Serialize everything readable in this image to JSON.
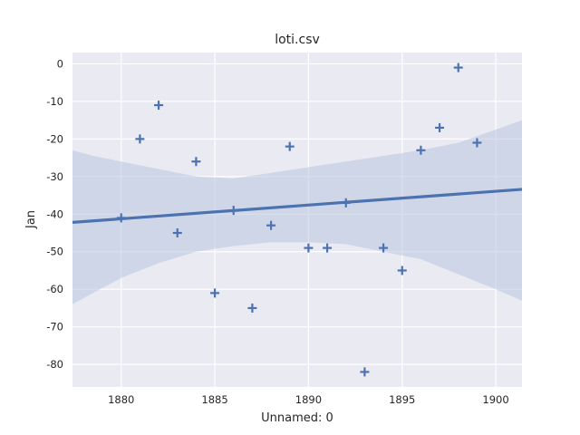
{
  "chart_data": {
    "type": "scatter",
    "title": "loti.csv",
    "xlabel": "Unnamed: 0",
    "ylabel": "Jan",
    "xlim": [
      1877.4,
      1901.4
    ],
    "ylim": [
      -86,
      3
    ],
    "xticks": [
      1880,
      1885,
      1890,
      1895,
      1900
    ],
    "yticks": [
      0,
      -10,
      -20,
      -30,
      -40,
      -50,
      -60,
      -70,
      -80
    ],
    "grid": true,
    "marker": "+",
    "colors": {
      "points": "#4c72b0",
      "regression_line": "#4c72b0",
      "confidence_band": "#b8c5e0",
      "plot_background": "#eaeaf2",
      "grid": "#ffffff"
    },
    "series": [
      {
        "x": [
          1880,
          1881,
          1882,
          1883,
          1884,
          1885,
          1886,
          1887,
          1888,
          1889,
          1890,
          1891,
          1892,
          1893,
          1894,
          1895,
          1896,
          1897,
          1898,
          1899
        ],
        "y": [
          -41,
          -20,
          -11,
          -45,
          -26,
          -61,
          -39,
          -65,
          -43,
          -22,
          -49,
          -49,
          -37,
          -82,
          -49,
          -55,
          -23,
          -17,
          -1,
          -21
        ]
      }
    ],
    "regression": {
      "x": [
        1877.4,
        1901.4
      ],
      "y": [
        -42.2,
        -33.4
      ]
    },
    "confidence_band": {
      "x": [
        1877.4,
        1878.5,
        1880,
        1882,
        1884,
        1886,
        1888,
        1890,
        1892,
        1894,
        1896,
        1898,
        1900,
        1901.4
      ],
      "upper": [
        -23,
        -24.5,
        -26,
        -28,
        -30,
        -30.5,
        -29,
        -27.5,
        -26,
        -24.5,
        -23,
        -21,
        -17.5,
        -15
      ],
      "lower": [
        -64,
        -61,
        -57,
        -53,
        -50,
        -48.5,
        -47.5,
        -47.5,
        -48,
        -50,
        -52,
        -56,
        -60,
        -63
      ]
    }
  }
}
